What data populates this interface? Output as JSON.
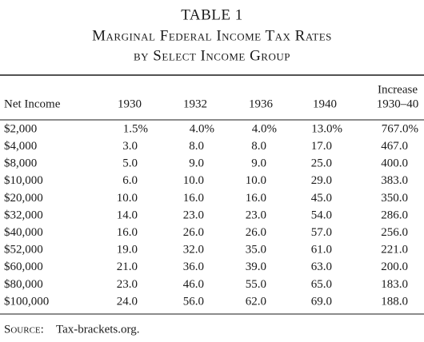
{
  "header": {
    "label": "TABLE 1",
    "title": "Marginal Federal Income Tax Rates",
    "subtitle": "by Select Income Group"
  },
  "table": {
    "columns": [
      [
        "Net Income"
      ],
      [
        "1930"
      ],
      [
        "1932"
      ],
      [
        "1936"
      ],
      [
        "1940"
      ],
      [
        "Increase",
        "1930–40"
      ]
    ],
    "rows": [
      [
        "$2,000",
        "1.5%",
        "4.0%",
        "4.0%",
        "13.0%",
        "767.0%"
      ],
      [
        "$4,000",
        "3.0",
        "8.0",
        "8.0",
        "17.0",
        "467.0"
      ],
      [
        "$8,000",
        "5.0",
        "9.0",
        "9.0",
        "25.0",
        "400.0"
      ],
      [
        "$10,000",
        "6.0",
        "10.0",
        "10.0",
        "29.0",
        "383.0"
      ],
      [
        "$20,000",
        "10.0",
        "16.0",
        "16.0",
        "45.0",
        "350.0"
      ],
      [
        "$32,000",
        "14.0",
        "23.0",
        "23.0",
        "54.0",
        "286.0"
      ],
      [
        "$40,000",
        "16.0",
        "26.0",
        "26.0",
        "57.0",
        "256.0"
      ],
      [
        "$52,000",
        "19.0",
        "32.0",
        "35.0",
        "61.0",
        "221.0"
      ],
      [
        "$60,000",
        "21.0",
        "36.0",
        "39.0",
        "63.0",
        "200.0"
      ],
      [
        "$80,000",
        "23.0",
        "46.0",
        "55.0",
        "65.0",
        "183.0"
      ],
      [
        "$100,000",
        "24.0",
        "56.0",
        "62.0",
        "69.0",
        "188.0"
      ]
    ]
  },
  "source": {
    "label": "Source:",
    "text": "Tax-brackets.org."
  }
}
